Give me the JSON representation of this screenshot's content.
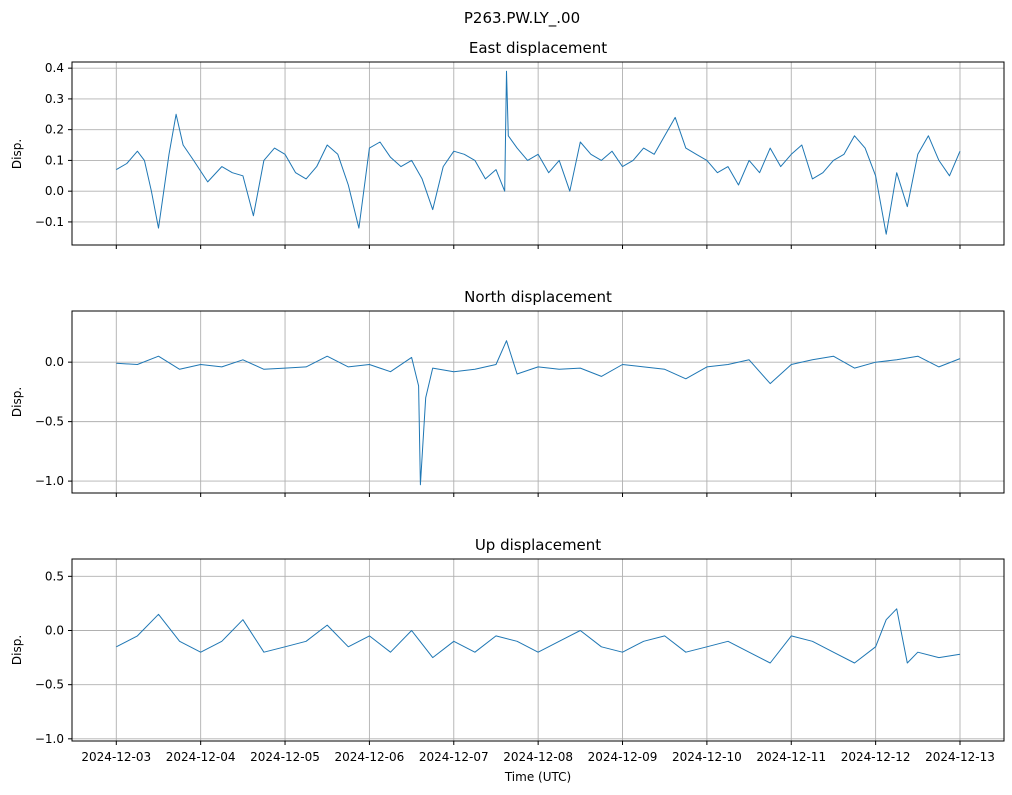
{
  "chart_data": {
    "type": "line",
    "suptitle": "P263.PW.LY_.00",
    "xlabel": "Time (UTC)",
    "x_ticks": [
      "2024-12-03",
      "2024-12-04",
      "2024-12-05",
      "2024-12-06",
      "2024-12-07",
      "2024-12-08",
      "2024-12-09",
      "2024-12-10",
      "2024-12-11",
      "2024-12-12",
      "2024-12-13"
    ],
    "xlim": [
      "2024-12-02T11:24",
      "2024-12-13T12:31"
    ],
    "grid": true,
    "color": "#1f77b4",
    "panels": [
      {
        "title": "East displacement",
        "ylabel": "Disp.",
        "ylim": [
          -0.175,
          0.42
        ],
        "y_ticks": [
          -0.1,
          0.0,
          0.1,
          0.2,
          0.3,
          0.4
        ],
        "y_tick_labels": [
          "−0.1",
          "0.0",
          "0.1",
          "0.2",
          "0.3",
          "0.4"
        ],
        "series": [
          {
            "x": [
              "2024-12-03T00:00",
              "2024-12-03T03:00",
              "2024-12-03T06:00",
              "2024-12-03T08:00",
              "2024-12-03T10:00",
              "2024-12-03T12:00",
              "2024-12-03T15:00",
              "2024-12-03T17:00",
              "2024-12-03T19:00",
              "2024-12-03T22:00",
              "2024-12-04T02:00",
              "2024-12-04T06:00",
              "2024-12-04T09:00",
              "2024-12-04T12:00",
              "2024-12-04T15:00",
              "2024-12-04T18:00",
              "2024-12-04T21:00",
              "2024-12-05T00:00",
              "2024-12-05T03:00",
              "2024-12-05T06:00",
              "2024-12-05T09:00",
              "2024-12-05T12:00",
              "2024-12-05T15:00",
              "2024-12-05T18:00",
              "2024-12-05T21:00",
              "2024-12-06T00:00",
              "2024-12-06T03:00",
              "2024-12-06T06:00",
              "2024-12-06T09:00",
              "2024-12-06T12:00",
              "2024-12-06T15:00",
              "2024-12-06T18:00",
              "2024-12-06T21:00",
              "2024-12-07T00:00",
              "2024-12-07T03:00",
              "2024-12-07T06:00",
              "2024-12-07T09:00",
              "2024-12-07T12:00",
              "2024-12-07T14:30",
              "2024-12-07T15:00",
              "2024-12-07T15:30",
              "2024-12-07T18:00",
              "2024-12-07T21:00",
              "2024-12-08T00:00",
              "2024-12-08T03:00",
              "2024-12-08T06:00",
              "2024-12-08T09:00",
              "2024-12-08T12:00",
              "2024-12-08T15:00",
              "2024-12-08T18:00",
              "2024-12-08T21:00",
              "2024-12-09T00:00",
              "2024-12-09T03:00",
              "2024-12-09T06:00",
              "2024-12-09T09:00",
              "2024-12-09T12:00",
              "2024-12-09T15:00",
              "2024-12-09T18:00",
              "2024-12-09T21:00",
              "2024-12-10T00:00",
              "2024-12-10T03:00",
              "2024-12-10T06:00",
              "2024-12-10T09:00",
              "2024-12-10T12:00",
              "2024-12-10T15:00",
              "2024-12-10T18:00",
              "2024-12-10T21:00",
              "2024-12-11T00:00",
              "2024-12-11T03:00",
              "2024-12-11T06:00",
              "2024-12-11T09:00",
              "2024-12-11T12:00",
              "2024-12-11T15:00",
              "2024-12-11T18:00",
              "2024-12-11T21:00",
              "2024-12-12T00:00",
              "2024-12-12T03:00",
              "2024-12-12T06:00",
              "2024-12-12T09:00",
              "2024-12-12T12:00",
              "2024-12-12T15:00",
              "2024-12-12T18:00",
              "2024-12-12T21:00",
              "2024-12-13T00:00"
            ],
            "y": [
              0.07,
              0.09,
              0.13,
              0.1,
              0.0,
              -0.12,
              0.12,
              0.25,
              0.15,
              0.1,
              0.03,
              0.08,
              0.06,
              0.05,
              -0.08,
              0.1,
              0.14,
              0.12,
              0.06,
              0.04,
              0.08,
              0.15,
              0.12,
              0.02,
              -0.12,
              0.14,
              0.16,
              0.11,
              0.08,
              0.1,
              0.04,
              -0.06,
              0.08,
              0.13,
              0.12,
              0.1,
              0.04,
              0.07,
              0.0,
              0.39,
              0.18,
              0.14,
              0.1,
              0.12,
              0.06,
              0.1,
              0.0,
              0.16,
              0.12,
              0.1,
              0.13,
              0.08,
              0.1,
              0.14,
              0.12,
              0.18,
              0.24,
              0.14,
              0.12,
              0.1,
              0.06,
              0.08,
              0.02,
              0.1,
              0.06,
              0.14,
              0.08,
              0.12,
              0.15,
              0.04,
              0.06,
              0.1,
              0.12,
              0.18,
              0.14,
              0.05,
              -0.14,
              0.06,
              -0.05,
              0.12,
              0.18,
              0.1,
              0.05,
              0.13
            ]
          }
        ]
      },
      {
        "title": "North displacement",
        "ylabel": "Disp.",
        "ylim": [
          -1.1,
          0.43
        ],
        "y_ticks": [
          -1.0,
          -0.5,
          0.0
        ],
        "y_tick_labels": [
          "−1.0",
          "−0.5",
          "0.0"
        ],
        "series": [
          {
            "x": [
              "2024-12-03T00:00",
              "2024-12-03T06:00",
              "2024-12-03T12:00",
              "2024-12-03T18:00",
              "2024-12-04T00:00",
              "2024-12-04T06:00",
              "2024-12-04T12:00",
              "2024-12-04T18:00",
              "2024-12-05T00:00",
              "2024-12-05T06:00",
              "2024-12-05T12:00",
              "2024-12-05T18:00",
              "2024-12-06T00:00",
              "2024-12-06T06:00",
              "2024-12-06T12:00",
              "2024-12-06T14:00",
              "2024-12-06T14:30",
              "2024-12-06T16:00",
              "2024-12-06T18:00",
              "2024-12-07T00:00",
              "2024-12-07T06:00",
              "2024-12-07T12:00",
              "2024-12-07T15:00",
              "2024-12-07T18:00",
              "2024-12-08T00:00",
              "2024-12-08T06:00",
              "2024-12-08T12:00",
              "2024-12-08T18:00",
              "2024-12-09T00:00",
              "2024-12-09T06:00",
              "2024-12-09T12:00",
              "2024-12-09T18:00",
              "2024-12-10T00:00",
              "2024-12-10T06:00",
              "2024-12-10T12:00",
              "2024-12-10T18:00",
              "2024-12-11T00:00",
              "2024-12-11T06:00",
              "2024-12-11T12:00",
              "2024-12-11T18:00",
              "2024-12-12T00:00",
              "2024-12-12T06:00",
              "2024-12-12T12:00",
              "2024-12-12T18:00",
              "2024-12-13T00:00"
            ],
            "y": [
              -0.01,
              -0.02,
              0.05,
              -0.06,
              -0.02,
              -0.04,
              0.02,
              -0.06,
              -0.05,
              -0.04,
              0.05,
              -0.04,
              -0.02,
              -0.08,
              0.04,
              -0.2,
              -1.03,
              -0.3,
              -0.05,
              -0.08,
              -0.06,
              -0.02,
              0.18,
              -0.1,
              -0.04,
              -0.06,
              -0.05,
              -0.12,
              -0.02,
              -0.04,
              -0.06,
              -0.14,
              -0.04,
              -0.02,
              0.02,
              -0.18,
              -0.02,
              0.02,
              0.05,
              -0.05,
              0.0,
              0.02,
              0.05,
              -0.04,
              0.03
            ]
          }
        ]
      },
      {
        "title": "Up displacement",
        "ylabel": "Disp.",
        "ylim": [
          -1.02,
          0.66
        ],
        "y_ticks": [
          -1.0,
          -0.5,
          0.0,
          0.5
        ],
        "y_tick_labels": [
          "−1.0",
          "−0.5",
          "0.0",
          "0.5"
        ],
        "series": [
          {
            "x": [
              "2024-12-03T00:00",
              "2024-12-03T06:00",
              "2024-12-03T12:00",
              "2024-12-03T18:00",
              "2024-12-04T00:00",
              "2024-12-04T06:00",
              "2024-12-04T12:00",
              "2024-12-04T18:00",
              "2024-12-05T00:00",
              "2024-12-05T06:00",
              "2024-12-05T12:00",
              "2024-12-05T18:00",
              "2024-12-06T00:00",
              "2024-12-06T06:00",
              "2024-12-06T12:00",
              "2024-12-06T18:00",
              "2024-12-07T00:00",
              "2024-12-07T06:00",
              "2024-12-07T12:00",
              "2024-12-07T18:00",
              "2024-12-08T00:00",
              "2024-12-08T06:00",
              "2024-12-08T12:00",
              "2024-12-08T18:00",
              "2024-12-09T00:00",
              "2024-12-09T06:00",
              "2024-12-09T12:00",
              "2024-12-09T18:00",
              "2024-12-10T00:00",
              "2024-12-10T06:00",
              "2024-12-10T12:00",
              "2024-12-10T18:00",
              "2024-12-11T00:00",
              "2024-12-11T06:00",
              "2024-12-11T12:00",
              "2024-12-11T18:00",
              "2024-12-12T00:00",
              "2024-12-12T03:00",
              "2024-12-12T06:00",
              "2024-12-12T09:00",
              "2024-12-12T12:00",
              "2024-12-12T18:00",
              "2024-12-13T00:00"
            ],
            "y": [
              -0.15,
              -0.05,
              0.15,
              -0.1,
              -0.2,
              -0.1,
              0.1,
              -0.2,
              -0.15,
              -0.1,
              0.05,
              -0.15,
              -0.05,
              -0.2,
              0.0,
              -0.25,
              -0.1,
              -0.2,
              -0.05,
              -0.1,
              -0.2,
              -0.1,
              0.0,
              -0.15,
              -0.2,
              -0.1,
              -0.05,
              -0.2,
              -0.15,
              -0.1,
              -0.2,
              -0.3,
              -0.05,
              -0.1,
              -0.2,
              -0.3,
              -0.15,
              0.1,
              0.2,
              -0.3,
              -0.2,
              -0.25,
              -0.22
            ]
          }
        ]
      }
    ]
  }
}
